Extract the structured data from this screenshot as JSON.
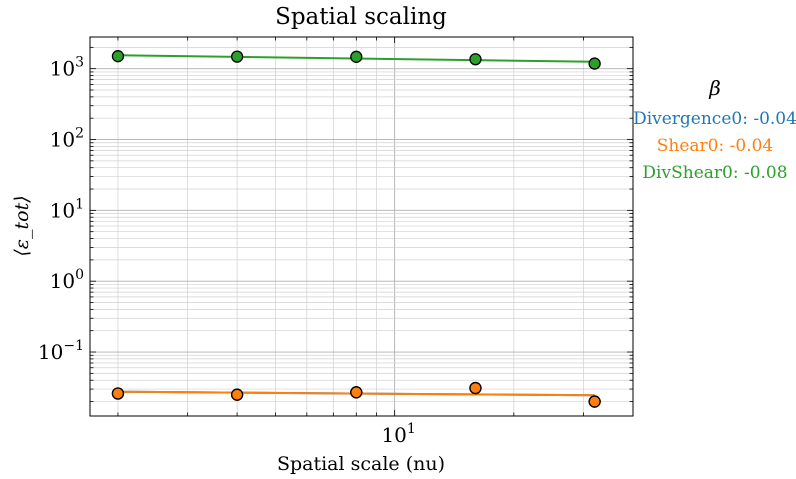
{
  "chart_data": {
    "type": "scatter",
    "title": "Spatial scaling",
    "xlabel": "Spatial scale (nu)",
    "ylabel": "⟨ε_tot⟩",
    "xscale": "log",
    "yscale": "log",
    "xlim": [
      1.7,
      40
    ],
    "ylim": [
      0.0125,
      2800
    ],
    "x_tick_labels": [
      {
        "value": 10,
        "base": "10",
        "exp": "1"
      }
    ],
    "y_tick_labels": [
      {
        "value": 0.1,
        "base": "10",
        "exp": "−1"
      },
      {
        "value": 1,
        "base": "10",
        "exp": "0"
      },
      {
        "value": 10,
        "base": "10",
        "exp": "1"
      },
      {
        "value": 100,
        "base": "10",
        "exp": "2"
      },
      {
        "value": 1000,
        "base": "10",
        "exp": "3"
      }
    ],
    "grid": true,
    "legend_title": "β",
    "legend_placement": "right",
    "series": [
      {
        "name": "Divergence0: -0.04",
        "color": "#1f77b4",
        "x": [
          2,
          4,
          8,
          16,
          32
        ],
        "y": [
          0.026,
          0.025,
          0.027,
          0.031,
          0.02
        ],
        "fit": {
          "x": [
            2,
            32
          ],
          "y": [
            0.0275,
            0.0245
          ]
        }
      },
      {
        "name": "Shear0: -0.04",
        "color": "#ff7f0e",
        "x": [
          2,
          4,
          8,
          16,
          32
        ],
        "y": [
          0.026,
          0.025,
          0.027,
          0.031,
          0.02
        ],
        "fit": {
          "x": [
            2,
            32
          ],
          "y": [
            0.0275,
            0.0245
          ]
        }
      },
      {
        "name": "DivShear0: -0.08",
        "color": "#2ca02c",
        "x": [
          2,
          4,
          8,
          16,
          32
        ],
        "y": [
          1500,
          1480,
          1470,
          1360,
          1180
        ],
        "fit": {
          "x": [
            2,
            32
          ],
          "y": [
            1550,
            1250
          ]
        }
      }
    ]
  }
}
